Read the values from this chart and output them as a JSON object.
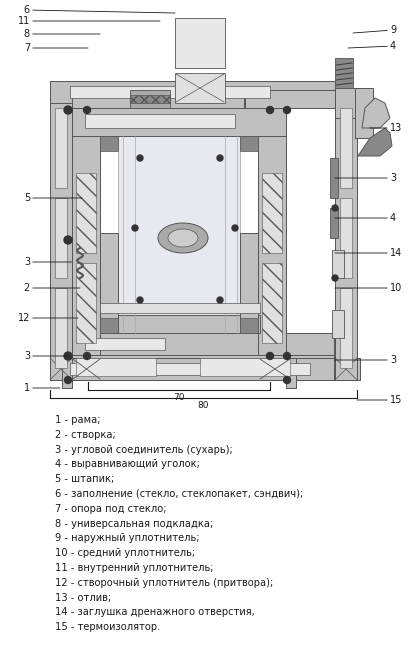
{
  "bg_color": "#ffffff",
  "fig_width": 4.09,
  "fig_height": 6.58,
  "dpi": 100,
  "legend_items": [
    "1 - рама;",
    "2 - створка;",
    "3 - угловой соединитель (сухарь);",
    "4 - выравнивающий уголок;",
    "5 - штапик;",
    "6 - заполнение (стекло, стеклопакет, сэндвич);",
    "7 - опора под стекло;",
    "8 - универсальная подкладка;",
    "9 - наружный уплотнитель;",
    "10 - средний уплотнитель;",
    "11 - внутренний уплотнитель;",
    "12 - створочный уплотнитель (притвора);",
    "13 - отлив;",
    "14 - заглушка дренажного отверстия,",
    "15 - термоизолятор."
  ],
  "gray": "#b0b0b0",
  "dgray": "#888888",
  "lgray": "#d8d8d8",
  "black": "#1a1a1a",
  "frame_fill": "#c0c0c0",
  "frame_edge": "#555555"
}
